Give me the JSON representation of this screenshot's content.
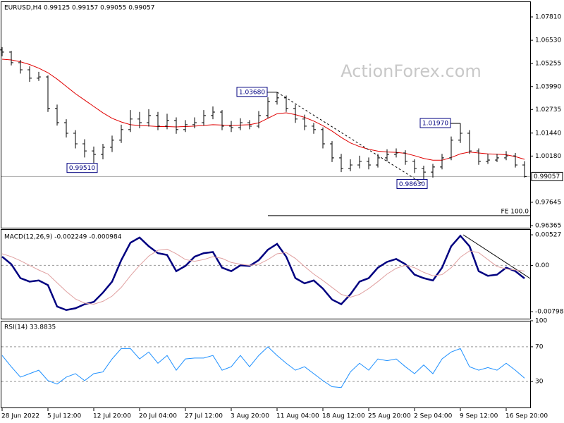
{
  "chart_data": [
    {
      "type": "ohlc",
      "title": "EURUSD,H4  0.99125 0.99157 0.99055 0.99057",
      "watermark": "ActionForex.com",
      "color": "#000000",
      "ylim": [
        0.9625,
        1.0866
      ],
      "yticks": [
        {
          "value": 1.0781,
          "label": "1.07810"
        },
        {
          "value": 1.0653,
          "label": "1.06530"
        },
        {
          "value": 1.05255,
          "label": "1.05255"
        },
        {
          "value": 1.0399,
          "label": "1.03990"
        },
        {
          "value": 1.02735,
          "label": "1.02735"
        },
        {
          "value": 1.0144,
          "label": "1.01440"
        },
        {
          "value": 1.0018,
          "label": "1.00180"
        },
        {
          "value": 0.97645,
          "label": "0.97645"
        },
        {
          "value": 0.96365,
          "label": "0.96365"
        }
      ],
      "open": [
        1.06,
        1.0588,
        1.053,
        1.0491,
        1.0445,
        1.0452,
        1.0279,
        1.0201,
        1.0143,
        1.0085,
        1.0046,
        1.0027,
        1.0066,
        1.0105,
        1.0163,
        1.0221,
        1.0201,
        1.024,
        1.0182,
        1.0213,
        1.0163,
        1.019,
        1.0201,
        1.024,
        1.0259,
        1.0182,
        1.0174,
        1.0201,
        1.0182,
        1.024,
        1.0317,
        1.0337,
        1.0279,
        1.0221,
        1.0182,
        1.0163,
        1.0085,
        1.0008,
        0.995,
        0.9969,
        0.9989,
        0.9969,
        1.0008,
        1.0027,
        1.0035,
        0.9989,
        0.995,
        0.993,
        0.9958,
        1.0008,
        1.0105,
        1.0143,
        1.0046,
        0.9989,
        0.9996,
        1.0008,
        1.0019,
        0.9969
      ],
      "high": [
        1.0615,
        1.0595,
        1.0545,
        1.051,
        1.048,
        1.046,
        1.03,
        1.022,
        1.016,
        1.011,
        1.007,
        1.0085,
        1.013,
        1.019,
        1.027,
        1.026,
        1.0275,
        1.026,
        1.025,
        1.023,
        1.0215,
        1.023,
        1.027,
        1.029,
        1.027,
        1.021,
        1.0225,
        1.0215,
        1.0265,
        1.034,
        1.0368,
        1.035,
        1.03,
        1.0245,
        1.02,
        1.0175,
        1.01,
        1.003,
        1.0,
        1.002,
        1.001,
        1.003,
        1.0055,
        1.006,
        1.005,
        1.0,
        0.9965,
        0.9975,
        1.003,
        1.0125,
        1.0197,
        1.016,
        1.006,
        1.003,
        1.003,
        1.0045,
        1.0035,
        0.999
      ],
      "low": [
        1.0565,
        1.0515,
        1.047,
        1.0425,
        1.043,
        1.026,
        1.0185,
        1.012,
        1.006,
        1.001,
        0.9951,
        1.0,
        1.004,
        1.009,
        1.015,
        1.017,
        1.018,
        1.016,
        1.0165,
        1.014,
        1.015,
        1.017,
        1.0185,
        1.022,
        1.016,
        1.015,
        1.016,
        1.0165,
        1.017,
        1.0225,
        1.03,
        1.026,
        1.02,
        1.016,
        1.014,
        1.006,
        0.9985,
        0.993,
        0.9935,
        0.995,
        0.9945,
        0.9955,
        0.999,
        1.001,
        0.997,
        0.9925,
        0.9863,
        0.99,
        0.9945,
        0.9995,
        1.009,
        1.003,
        0.997,
        0.9975,
        0.9985,
        0.9995,
        0.9955,
        0.99
      ],
      "close": [
        1.0588,
        1.053,
        1.0491,
        1.0445,
        1.0452,
        1.0279,
        1.0201,
        1.0143,
        1.0085,
        1.0046,
        1.0027,
        1.0066,
        1.0105,
        1.0163,
        1.0221,
        1.0201,
        1.024,
        1.0182,
        1.0213,
        1.0163,
        1.019,
        1.0201,
        1.024,
        1.0259,
        1.0182,
        1.0174,
        1.0201,
        1.0182,
        1.024,
        1.0317,
        1.0337,
        1.0279,
        1.0221,
        1.0182,
        1.0163,
        1.0085,
        1.0008,
        0.995,
        0.9969,
        0.9989,
        0.9969,
        1.0008,
        1.0027,
        1.0035,
        0.9989,
        0.995,
        0.993,
        0.9958,
        1.0008,
        1.0105,
        1.0143,
        1.0046,
        0.9989,
        0.9996,
        1.0008,
        1.0019,
        0.9969,
        0.99057
      ],
      "ma": {
        "color": "#e00000",
        "values": [
          1.0549,
          1.0545,
          1.0535,
          1.052,
          1.05,
          1.0475,
          1.044,
          1.04,
          1.036,
          1.0325,
          1.029,
          1.0255,
          1.0225,
          1.0205,
          1.019,
          1.0185,
          1.0183,
          1.018,
          1.018,
          1.0178,
          1.018,
          1.0182,
          1.0186,
          1.019,
          1.0188,
          1.0186,
          1.0188,
          1.019,
          1.02,
          1.0225,
          1.025,
          1.0255,
          1.0245,
          1.023,
          1.021,
          1.0185,
          1.0155,
          1.012,
          1.009,
          1.007,
          1.0055,
          1.0045,
          1.004,
          1.0038,
          1.0033,
          1.002,
          1.0005,
          0.9995,
          0.9995,
          1.001,
          1.003,
          1.004,
          1.0035,
          1.003,
          1.0028,
          1.0025,
          1.0015,
          1.0
        ]
      },
      "annotations": [
        {
          "value": 1.0368,
          "label": "1.03680"
        },
        {
          "value": 0.9951,
          "label": "0.99510"
        },
        {
          "value": 0.9863,
          "label": "0.98630"
        },
        {
          "value": 1.0197,
          "label": "1.01970"
        }
      ],
      "fe": {
        "value": 0.9691,
        "label": "FE 100.0"
      }
    },
    {
      "type": "line",
      "title": "MACD(12,26,9) -0.002249 -0.000984",
      "ylim": [
        -0.00919,
        0.00625
      ],
      "yticks": [
        0.00527,
        {
          "value": 0,
          "label": "0.00"
        },
        -0.007984
      ],
      "levels": [
        0
      ],
      "series": [
        {
          "color": "#000080",
          "values": [
            0.0015,
            0.0002,
            -0.0022,
            -0.0028,
            -0.0026,
            -0.0034,
            -0.0071,
            -0.0077,
            -0.0074,
            -0.0067,
            -0.0063,
            -0.0047,
            -0.0028,
            0.0009,
            0.0039,
            0.0048,
            0.0033,
            0.0021,
            0.0018,
            -0.001,
            -0.0001,
            0.0015,
            0.0021,
            0.0023,
            -0.0004,
            -0.001,
            0.0,
            -0.0001,
            0.0009,
            0.0027,
            0.0037,
            0.0015,
            -0.0022,
            -0.0031,
            -0.0026,
            -0.004,
            -0.0059,
            -0.0067,
            -0.005,
            -0.0028,
            -0.0022,
            -0.0004,
            0.0006,
            0.0011,
            0.0002,
            -0.0016,
            -0.0022,
            -0.0026,
            -0.0004,
            0.0033,
            0.0051,
            0.0033,
            -0.001,
            -0.0018,
            -0.0016,
            -0.0004,
            -0.001,
            -0.002249
          ]
        },
        {
          "color": "#e0a0a0",
          "values": [
            0.002,
            0.0015,
            0.0008,
            0.0,
            -0.0008,
            -0.0015,
            -0.003,
            -0.0045,
            -0.0058,
            -0.0065,
            -0.0067,
            -0.0062,
            -0.0053,
            -0.0038,
            -0.0018,
            0.0,
            0.0016,
            0.0026,
            0.0028,
            0.002,
            0.001,
            0.0007,
            0.001,
            0.0015,
            0.0012,
            0.0005,
            0.0002,
            0.0,
            0.0002,
            0.001,
            0.002,
            0.0022,
            0.0012,
            -0.0002,
            -0.0015,
            -0.0026,
            -0.0038,
            -0.005,
            -0.0055,
            -0.005,
            -0.004,
            -0.0028,
            -0.0015,
            -0.0005,
            0.0,
            -0.0004,
            -0.0012,
            -0.0018,
            -0.0016,
            -0.0004,
            0.0014,
            0.0025,
            0.0022,
            0.001,
            -0.0002,
            -0.0006,
            -0.0008,
            -0.000984
          ]
        }
      ]
    },
    {
      "type": "line",
      "title": "RSI(14) 33.8835",
      "ylim": [
        0,
        100
      ],
      "yticks": [
        100,
        70,
        30
      ],
      "levels": [
        70,
        30
      ],
      "categories": [
        "28 Jun 2022",
        null,
        null,
        null,
        null,
        "5 Jul 12:00",
        null,
        null,
        null,
        null,
        "12 Jul 20:00",
        null,
        null,
        null,
        null,
        "20 Jul 04:00",
        null,
        null,
        null,
        null,
        "27 Jul 12:00",
        null,
        null,
        null,
        null,
        "3 Aug 20:00",
        null,
        null,
        null,
        null,
        "11 Aug 04:00",
        null,
        null,
        null,
        null,
        "18 Aug 12:00",
        null,
        null,
        null,
        null,
        "25 Aug 20:00",
        null,
        null,
        null,
        null,
        "2 Sep 04:00",
        null,
        null,
        null,
        null,
        "9 Sep 12:00",
        null,
        null,
        null,
        null,
        "16 Sep 20:00",
        null,
        null
      ],
      "series": [
        {
          "color": "#1e90ff",
          "values": [
            60,
            47,
            35,
            39,
            43,
            31,
            27,
            35,
            39,
            31,
            39,
            41,
            56,
            68,
            68,
            56,
            64,
            51,
            60,
            43,
            56,
            57,
            57,
            60,
            43,
            47,
            60,
            47,
            60,
            70,
            60,
            51,
            43,
            47,
            39,
            31,
            24,
            23,
            41,
            51,
            43,
            56,
            54,
            56,
            47,
            39,
            49,
            39,
            56,
            64,
            68,
            47,
            43,
            46,
            43,
            51,
            43,
            33.8835
          ]
        }
      ]
    }
  ]
}
